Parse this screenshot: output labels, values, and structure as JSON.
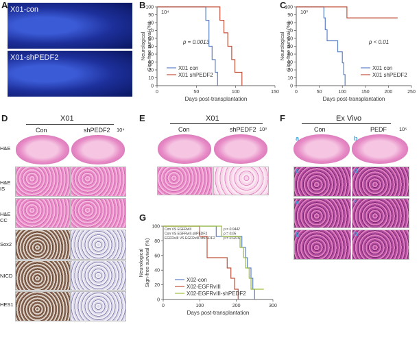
{
  "panels": {
    "A": "A",
    "B": "B",
    "C": "C",
    "D": "D",
    "E": "E",
    "F": "F",
    "G": "G"
  },
  "panelA": {
    "top_label": "X01-con",
    "bottom_label": "X01-shPEDF2"
  },
  "panelD": {
    "title": "X01",
    "col1": "Con",
    "col2": "shPEDF2",
    "dose": "10⁴",
    "rows": [
      "H&E",
      "H&E IS",
      "H&E CC",
      "Sox2",
      "NICD",
      "HES1"
    ]
  },
  "panelE": {
    "title": "X01",
    "col1": "Con",
    "col2": "shPEDF2",
    "dose": "10³"
  },
  "panelF": {
    "title": "Ex Vivo",
    "col1": "Con",
    "col2": "PEDF",
    "dose": "10⁵",
    "tiles": [
      "a",
      "b",
      "c",
      "d",
      "e",
      "f",
      "g",
      "h"
    ]
  },
  "chart_data": [
    {
      "panel": "B",
      "type": "line",
      "step": true,
      "title": "10⁴",
      "xlabel": "Days post-transplantation",
      "ylabel": "Neurological Sign-free survival (%)",
      "xlim": [
        0,
        150
      ],
      "ylim": [
        0,
        100
      ],
      "xticks": [
        0,
        50,
        100,
        150
      ],
      "yticks": [
        0,
        10,
        20,
        30,
        40,
        50,
        60,
        70,
        80,
        90,
        100
      ],
      "annotation": "p = 0.0013",
      "series": [
        {
          "name": "X01 con",
          "color": "#5b7fc4",
          "points": [
            [
              0,
              100
            ],
            [
              62,
              100
            ],
            [
              62,
              83
            ],
            [
              66,
              83
            ],
            [
              66,
              50
            ],
            [
              70,
              50
            ],
            [
              70,
              33
            ],
            [
              74,
              33
            ],
            [
              74,
              17
            ],
            [
              77,
              17
            ],
            [
              77,
              0
            ]
          ]
        },
        {
          "name": "X01 shPEDF2",
          "color": "#c0503a",
          "points": [
            [
              0,
              100
            ],
            [
              80,
              100
            ],
            [
              80,
              83
            ],
            [
              85,
              83
            ],
            [
              85,
              67
            ],
            [
              90,
              67
            ],
            [
              90,
              50
            ],
            [
              95,
              50
            ],
            [
              95,
              33
            ],
            [
              99,
              33
            ],
            [
              99,
              17
            ],
            [
              108,
              17
            ],
            [
              108,
              0
            ]
          ]
        }
      ]
    },
    {
      "panel": "C",
      "type": "line",
      "step": true,
      "title": "10³",
      "xlabel": "Days post-transplantation",
      "ylabel": "Neurological Sign-free survival (%)",
      "xlim": [
        0,
        250
      ],
      "ylim": [
        0,
        100
      ],
      "xticks": [
        0,
        50,
        100,
        150,
        200,
        250
      ],
      "yticks": [
        0,
        10,
        20,
        30,
        40,
        50,
        60,
        70,
        80,
        90,
        100
      ],
      "annotation": "p < 0.01",
      "series": [
        {
          "name": "X01 con",
          "color": "#5b7fc4",
          "points": [
            [
              0,
              100
            ],
            [
              60,
              100
            ],
            [
              60,
              86
            ],
            [
              63,
              86
            ],
            [
              63,
              71
            ],
            [
              67,
              71
            ],
            [
              67,
              57
            ],
            [
              90,
              57
            ],
            [
              90,
              43
            ],
            [
              100,
              43
            ],
            [
              100,
              29
            ],
            [
              103,
              29
            ],
            [
              103,
              14
            ],
            [
              106,
              14
            ],
            [
              106,
              0
            ]
          ]
        },
        {
          "name": "X01 shPEDF2",
          "color": "#c0503a",
          "points": [
            [
              0,
              100
            ],
            [
              110,
              100
            ],
            [
              110,
              86
            ],
            [
              220,
              86
            ]
          ]
        }
      ]
    },
    {
      "panel": "G",
      "type": "line",
      "step": true,
      "xlabel": "Days post-transplantation",
      "ylabel": "Neurological Sign-free survival (%)",
      "xlim": [
        0,
        300
      ],
      "ylim": [
        0,
        100
      ],
      "xticks": [
        0,
        100,
        200,
        300
      ],
      "yticks": [
        0,
        20,
        40,
        60,
        80,
        100
      ],
      "annotations": [
        {
          "label": "Con VS EGFRvIII",
          "p": "p = 0.0442"
        },
        {
          "label": "Con VS EGFRvIII-shPEDF2",
          "p": "p = 0.05"
        },
        {
          "label": "EGFRvIII VS EGFRvIII-shPEDF2",
          "p": "p = 0.0216"
        }
      ],
      "series": [
        {
          "name": "X02-con",
          "color": "#5b7fc4",
          "points": [
            [
              0,
              100
            ],
            [
              145,
              100
            ],
            [
              145,
              86
            ],
            [
              215,
              86
            ],
            [
              215,
              71
            ],
            [
              225,
              71
            ],
            [
              225,
              57
            ],
            [
              230,
              57
            ],
            [
              230,
              43
            ],
            [
              240,
              43
            ],
            [
              240,
              29
            ],
            [
              245,
              29
            ],
            [
              245,
              14
            ],
            [
              250,
              14
            ],
            [
              250,
              0
            ]
          ]
        },
        {
          "name": "X02-EGFRvIII",
          "color": "#c0503a",
          "points": [
            [
              0,
              100
            ],
            [
              100,
              100
            ],
            [
              100,
              86
            ],
            [
              120,
              86
            ],
            [
              120,
              57
            ],
            [
              175,
              57
            ],
            [
              175,
              43
            ],
            [
              185,
              43
            ],
            [
              185,
              29
            ],
            [
              195,
              29
            ],
            [
              195,
              14
            ],
            [
              205,
              14
            ],
            [
              205,
              0
            ]
          ]
        },
        {
          "name": "X02-EGFRvIII-shPEDF2",
          "color": "#9dbf3a",
          "points": [
            [
              0,
              100
            ],
            [
              160,
              100
            ],
            [
              160,
              86
            ],
            [
              210,
              86
            ],
            [
              210,
              71
            ],
            [
              220,
              71
            ],
            [
              220,
              57
            ],
            [
              225,
              57
            ],
            [
              225,
              43
            ],
            [
              235,
              43
            ],
            [
              235,
              29
            ],
            [
              240,
              29
            ],
            [
              240,
              14
            ],
            [
              275,
              14
            ]
          ]
        }
      ]
    }
  ]
}
